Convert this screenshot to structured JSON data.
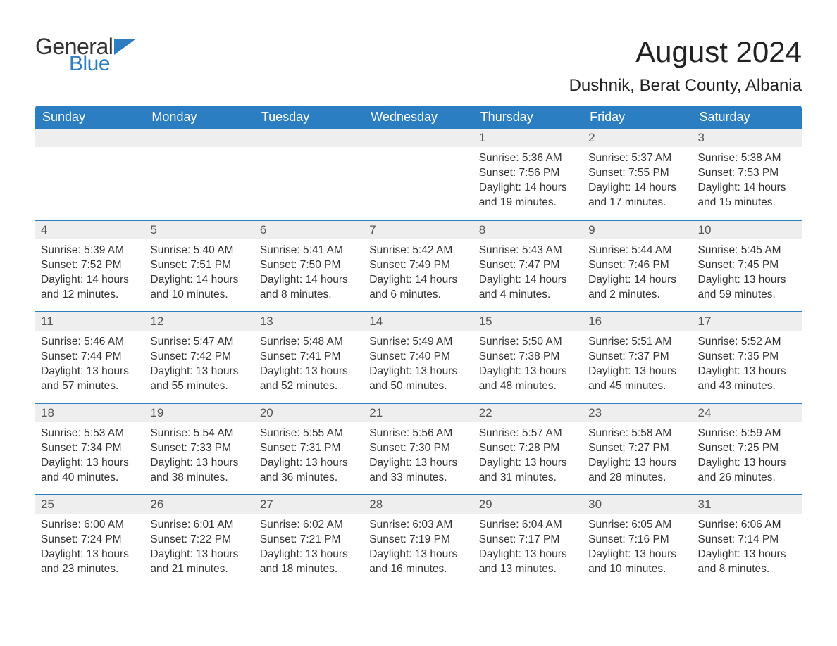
{
  "brand": {
    "part1": "General",
    "part2": "Blue",
    "flag_color": "#2b7ec1"
  },
  "title": "August 2024",
  "location": "Dushnik, Berat County, Albania",
  "colors": {
    "header_bg": "#2b7ec1",
    "header_text": "#ffffff",
    "daynum_bg": "#eeeeee",
    "row_border": "#2b7ec1",
    "body_text": "#333333",
    "background": "#ffffff"
  },
  "typography": {
    "month_title_fontsize": 42,
    "location_fontsize": 24,
    "weekday_fontsize": 18,
    "daynum_fontsize": 17,
    "body_fontsize": 15.5,
    "font_family": "Arial"
  },
  "weekdays": [
    "Sunday",
    "Monday",
    "Tuesday",
    "Wednesday",
    "Thursday",
    "Friday",
    "Saturday"
  ],
  "weeks": [
    [
      null,
      null,
      null,
      null,
      {
        "day": "1",
        "sunrise": "Sunrise: 5:36 AM",
        "sunset": "Sunset: 7:56 PM",
        "daylight1": "Daylight: 14 hours",
        "daylight2": "and 19 minutes."
      },
      {
        "day": "2",
        "sunrise": "Sunrise: 5:37 AM",
        "sunset": "Sunset: 7:55 PM",
        "daylight1": "Daylight: 14 hours",
        "daylight2": "and 17 minutes."
      },
      {
        "day": "3",
        "sunrise": "Sunrise: 5:38 AM",
        "sunset": "Sunset: 7:53 PM",
        "daylight1": "Daylight: 14 hours",
        "daylight2": "and 15 minutes."
      }
    ],
    [
      {
        "day": "4",
        "sunrise": "Sunrise: 5:39 AM",
        "sunset": "Sunset: 7:52 PM",
        "daylight1": "Daylight: 14 hours",
        "daylight2": "and 12 minutes."
      },
      {
        "day": "5",
        "sunrise": "Sunrise: 5:40 AM",
        "sunset": "Sunset: 7:51 PM",
        "daylight1": "Daylight: 14 hours",
        "daylight2": "and 10 minutes."
      },
      {
        "day": "6",
        "sunrise": "Sunrise: 5:41 AM",
        "sunset": "Sunset: 7:50 PM",
        "daylight1": "Daylight: 14 hours",
        "daylight2": "and 8 minutes."
      },
      {
        "day": "7",
        "sunrise": "Sunrise: 5:42 AM",
        "sunset": "Sunset: 7:49 PM",
        "daylight1": "Daylight: 14 hours",
        "daylight2": "and 6 minutes."
      },
      {
        "day": "8",
        "sunrise": "Sunrise: 5:43 AM",
        "sunset": "Sunset: 7:47 PM",
        "daylight1": "Daylight: 14 hours",
        "daylight2": "and 4 minutes."
      },
      {
        "day": "9",
        "sunrise": "Sunrise: 5:44 AM",
        "sunset": "Sunset: 7:46 PM",
        "daylight1": "Daylight: 14 hours",
        "daylight2": "and 2 minutes."
      },
      {
        "day": "10",
        "sunrise": "Sunrise: 5:45 AM",
        "sunset": "Sunset: 7:45 PM",
        "daylight1": "Daylight: 13 hours",
        "daylight2": "and 59 minutes."
      }
    ],
    [
      {
        "day": "11",
        "sunrise": "Sunrise: 5:46 AM",
        "sunset": "Sunset: 7:44 PM",
        "daylight1": "Daylight: 13 hours",
        "daylight2": "and 57 minutes."
      },
      {
        "day": "12",
        "sunrise": "Sunrise: 5:47 AM",
        "sunset": "Sunset: 7:42 PM",
        "daylight1": "Daylight: 13 hours",
        "daylight2": "and 55 minutes."
      },
      {
        "day": "13",
        "sunrise": "Sunrise: 5:48 AM",
        "sunset": "Sunset: 7:41 PM",
        "daylight1": "Daylight: 13 hours",
        "daylight2": "and 52 minutes."
      },
      {
        "day": "14",
        "sunrise": "Sunrise: 5:49 AM",
        "sunset": "Sunset: 7:40 PM",
        "daylight1": "Daylight: 13 hours",
        "daylight2": "and 50 minutes."
      },
      {
        "day": "15",
        "sunrise": "Sunrise: 5:50 AM",
        "sunset": "Sunset: 7:38 PM",
        "daylight1": "Daylight: 13 hours",
        "daylight2": "and 48 minutes."
      },
      {
        "day": "16",
        "sunrise": "Sunrise: 5:51 AM",
        "sunset": "Sunset: 7:37 PM",
        "daylight1": "Daylight: 13 hours",
        "daylight2": "and 45 minutes."
      },
      {
        "day": "17",
        "sunrise": "Sunrise: 5:52 AM",
        "sunset": "Sunset: 7:35 PM",
        "daylight1": "Daylight: 13 hours",
        "daylight2": "and 43 minutes."
      }
    ],
    [
      {
        "day": "18",
        "sunrise": "Sunrise: 5:53 AM",
        "sunset": "Sunset: 7:34 PM",
        "daylight1": "Daylight: 13 hours",
        "daylight2": "and 40 minutes."
      },
      {
        "day": "19",
        "sunrise": "Sunrise: 5:54 AM",
        "sunset": "Sunset: 7:33 PM",
        "daylight1": "Daylight: 13 hours",
        "daylight2": "and 38 minutes."
      },
      {
        "day": "20",
        "sunrise": "Sunrise: 5:55 AM",
        "sunset": "Sunset: 7:31 PM",
        "daylight1": "Daylight: 13 hours",
        "daylight2": "and 36 minutes."
      },
      {
        "day": "21",
        "sunrise": "Sunrise: 5:56 AM",
        "sunset": "Sunset: 7:30 PM",
        "daylight1": "Daylight: 13 hours",
        "daylight2": "and 33 minutes."
      },
      {
        "day": "22",
        "sunrise": "Sunrise: 5:57 AM",
        "sunset": "Sunset: 7:28 PM",
        "daylight1": "Daylight: 13 hours",
        "daylight2": "and 31 minutes."
      },
      {
        "day": "23",
        "sunrise": "Sunrise: 5:58 AM",
        "sunset": "Sunset: 7:27 PM",
        "daylight1": "Daylight: 13 hours",
        "daylight2": "and 28 minutes."
      },
      {
        "day": "24",
        "sunrise": "Sunrise: 5:59 AM",
        "sunset": "Sunset: 7:25 PM",
        "daylight1": "Daylight: 13 hours",
        "daylight2": "and 26 minutes."
      }
    ],
    [
      {
        "day": "25",
        "sunrise": "Sunrise: 6:00 AM",
        "sunset": "Sunset: 7:24 PM",
        "daylight1": "Daylight: 13 hours",
        "daylight2": "and 23 minutes."
      },
      {
        "day": "26",
        "sunrise": "Sunrise: 6:01 AM",
        "sunset": "Sunset: 7:22 PM",
        "daylight1": "Daylight: 13 hours",
        "daylight2": "and 21 minutes."
      },
      {
        "day": "27",
        "sunrise": "Sunrise: 6:02 AM",
        "sunset": "Sunset: 7:21 PM",
        "daylight1": "Daylight: 13 hours",
        "daylight2": "and 18 minutes."
      },
      {
        "day": "28",
        "sunrise": "Sunrise: 6:03 AM",
        "sunset": "Sunset: 7:19 PM",
        "daylight1": "Daylight: 13 hours",
        "daylight2": "and 16 minutes."
      },
      {
        "day": "29",
        "sunrise": "Sunrise: 6:04 AM",
        "sunset": "Sunset: 7:17 PM",
        "daylight1": "Daylight: 13 hours",
        "daylight2": "and 13 minutes."
      },
      {
        "day": "30",
        "sunrise": "Sunrise: 6:05 AM",
        "sunset": "Sunset: 7:16 PM",
        "daylight1": "Daylight: 13 hours",
        "daylight2": "and 10 minutes."
      },
      {
        "day": "31",
        "sunrise": "Sunrise: 6:06 AM",
        "sunset": "Sunset: 7:14 PM",
        "daylight1": "Daylight: 13 hours",
        "daylight2": "and 8 minutes."
      }
    ]
  ]
}
